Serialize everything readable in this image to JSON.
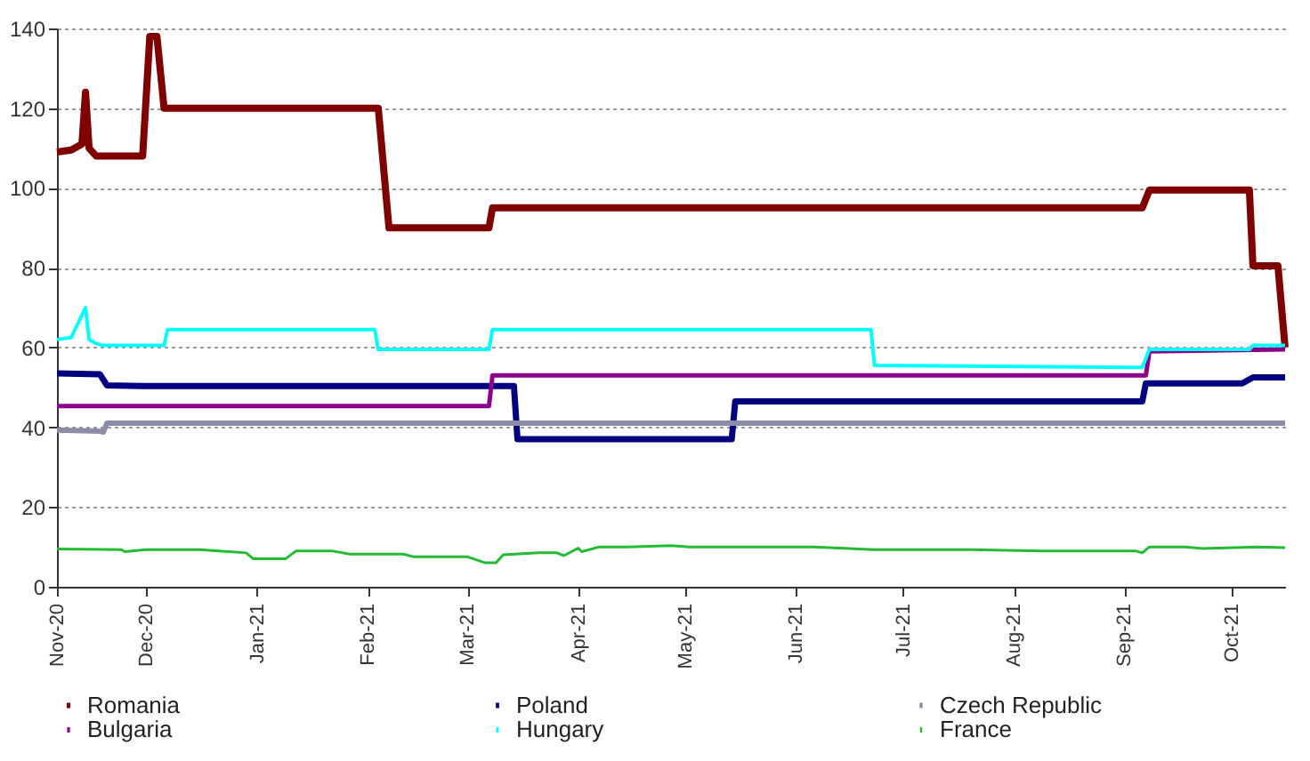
{
  "chart_data": {
    "type": "line",
    "grid": "y",
    "legend": "bottom",
    "xlim": [
      "2020-11-06",
      "2021-10-16"
    ],
    "xticks": [
      {
        "value": "2020-11-06",
        "label": "Nov-20"
      },
      {
        "value": "2020-12-01",
        "label": "Dec-20"
      },
      {
        "value": "2021-01-01",
        "label": "Jan-21"
      },
      {
        "value": "2021-02-01",
        "label": "Feb-21"
      },
      {
        "value": "2021-03-01",
        "label": "Mar-21"
      },
      {
        "value": "2021-04-01",
        "label": "Apr-21"
      },
      {
        "value": "2021-05-01",
        "label": "May-21"
      },
      {
        "value": "2021-06-01",
        "label": "Jun-21"
      },
      {
        "value": "2021-07-01",
        "label": "Jul-21"
      },
      {
        "value": "2021-08-01",
        "label": "Aug-21"
      },
      {
        "value": "2021-09-01",
        "label": "Sep-21"
      },
      {
        "value": "2021-10-01",
        "label": "Oct-21"
      }
    ],
    "ylim": [
      0,
      140
    ],
    "yticks": [
      0,
      20,
      40,
      60,
      80,
      100,
      120,
      140
    ],
    "series": [
      {
        "name": "Romania",
        "color": "#800000",
        "x": [
          "2020-11-06",
          "2020-11-10",
          "2020-11-13",
          "2020-11-14",
          "2020-11-15",
          "2020-11-17",
          "2020-11-30",
          "2020-12-02",
          "2020-12-04",
          "2020-12-06",
          "2021-02-04",
          "2021-02-06",
          "2021-02-07",
          "2021-03-07",
          "2021-03-08",
          "2021-09-06",
          "2021-09-08",
          "2021-10-06",
          "2021-10-07",
          "2021-10-14",
          "2021-10-16"
        ],
        "values": [
          109,
          109.5,
          111,
          124,
          110,
          108,
          108,
          138,
          138,
          120,
          120,
          100,
          90,
          90,
          95,
          95,
          99.5,
          99.5,
          80.5,
          80.5,
          60
        ]
      },
      {
        "name": "Poland",
        "color": "#000080",
        "x": [
          "2020-11-06",
          "2020-11-18",
          "2020-11-20",
          "2020-11-30",
          "2021-03-14",
          "2021-03-15",
          "2021-05-14",
          "2021-05-15",
          "2021-09-06",
          "2021-09-07",
          "2021-10-04",
          "2021-10-07",
          "2021-10-16"
        ],
        "values": [
          53.5,
          53.3,
          50.5,
          50.3,
          50.3,
          37,
          37,
          46.5,
          46.5,
          51,
          51,
          52.5,
          52.5
        ]
      },
      {
        "name": "Czech Republic",
        "color": "#8c8ca8",
        "x": [
          "2020-11-06",
          "2020-11-18",
          "2020-11-19",
          "2020-11-20",
          "2021-10-16"
        ],
        "values": [
          39.3,
          39,
          38.8,
          41,
          41
        ]
      },
      {
        "name": "Bulgaria",
        "color": "#8b008b",
        "x": [
          "2020-11-06",
          "2021-03-07",
          "2021-03-08",
          "2021-09-07",
          "2021-09-08",
          "2021-10-16"
        ],
        "values": [
          45.3,
          45.3,
          53,
          53,
          59,
          59.5
        ]
      },
      {
        "name": "Hungary",
        "color": "#00ffff",
        "x": [
          "2020-11-06",
          "2020-11-10",
          "2020-11-14",
          "2020-11-15",
          "2020-11-17",
          "2020-11-19",
          "2020-12-06",
          "2020-12-07",
          "2021-02-03",
          "2021-02-04",
          "2021-03-07",
          "2021-03-08",
          "2021-06-22",
          "2021-06-23",
          "2021-09-06",
          "2021-09-08",
          "2021-10-06",
          "2021-10-07",
          "2021-10-16"
        ],
        "values": [
          62,
          62.5,
          70,
          62,
          61,
          60.5,
          60.5,
          64.5,
          64.5,
          59.5,
          59.5,
          64.5,
          64.5,
          55.5,
          55,
          59.5,
          59.5,
          60.5,
          60.5
        ]
      },
      {
        "name": "France",
        "color": "#22bb33",
        "x": [
          "2020-11-06",
          "2020-11-24",
          "2020-11-25",
          "2020-12-01",
          "2020-12-16",
          "2020-12-29",
          "2020-12-31",
          "2021-01-09",
          "2021-01-12",
          "2021-01-22",
          "2021-01-27",
          "2021-02-11",
          "2021-02-14",
          "2021-03-01",
          "2021-03-06",
          "2021-03-09",
          "2021-03-11",
          "2021-03-21",
          "2021-03-26",
          "2021-03-28",
          "2021-04-01",
          "2021-04-02",
          "2021-04-07",
          "2021-04-15",
          "2021-04-27",
          "2021-05-02",
          "2021-06-06",
          "2021-06-23",
          "2021-07-20",
          "2021-08-09",
          "2021-09-04",
          "2021-09-06",
          "2021-09-08",
          "2021-09-18",
          "2021-09-23",
          "2021-10-08",
          "2021-10-16"
        ],
        "values": [
          9.5,
          9.3,
          8.8,
          9.3,
          9.3,
          8.5,
          7,
          7,
          9,
          9,
          8.2,
          8.2,
          7.5,
          7.5,
          6,
          6,
          8,
          8.5,
          8.5,
          7.8,
          9.7,
          8.8,
          10,
          10,
          10.3,
          10,
          10,
          9.3,
          9.3,
          9,
          9,
          8.5,
          10,
          10,
          9.6,
          10,
          9.8
        ]
      }
    ]
  }
}
